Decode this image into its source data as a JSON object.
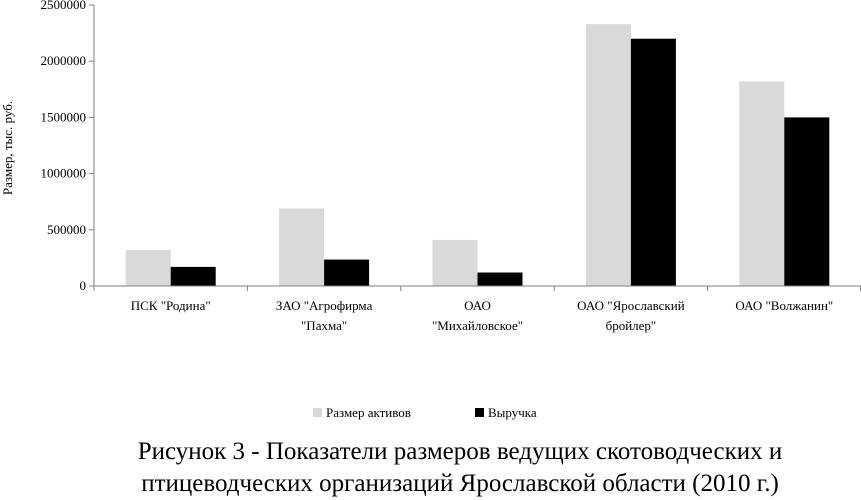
{
  "chart_data": {
    "type": "bar",
    "ylabel": "Размер, тыс. руб.",
    "ylim": [
      0,
      2500000
    ],
    "yticks": [
      0,
      500000,
      1000000,
      1500000,
      2000000,
      2500000
    ],
    "y_tick_labels": [
      "0",
      "500000",
      "1000000",
      "1500000",
      "2000000",
      "2500000"
    ],
    "grid": false,
    "legend_position": "bottom",
    "categories": [
      [
        "ПСК \"Родина\""
      ],
      [
        "ЗАО \"Агрофирма",
        "\"Пахма\""
      ],
      [
        "ОАО",
        "\"Михайловское\""
      ],
      [
        "ОАО \"Ярославский",
        "бройлер\""
      ],
      [
        "ОАО \"Волжанин\""
      ]
    ],
    "series": [
      {
        "name": "Размер активов",
        "color": "#d9d9d9",
        "values": [
          320000,
          690000,
          410000,
          2330000,
          1820000
        ]
      },
      {
        "name": "Выручка",
        "color": "#000000",
        "values": [
          170000,
          235000,
          120000,
          2200000,
          1500000
        ]
      }
    ]
  },
  "caption": {
    "line1": "Рисунок 3 - Показатели размеров ведущих скотоводческих и",
    "line2": "птицеводческих организаций Ярославской области (2010 г.)"
  }
}
